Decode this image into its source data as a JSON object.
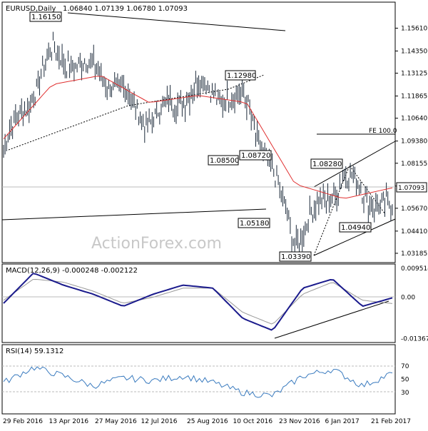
{
  "chart_data": [
    {
      "type": "line",
      "panel": "price",
      "title": "EURUSD,Daily",
      "ohlc_header": "1.06840 1.07139 1.06780 1.07093",
      "last_price_label": "1.07093",
      "y_ticks": [
        "1.15610",
        "1.14350",
        "1.13125",
        "1.11865",
        "1.10640",
        "1.09380",
        "1.08155",
        "1.06895",
        "1.05670",
        "1.04410",
        "1.03185"
      ],
      "ylim": [
        1.0275,
        1.1685
      ],
      "grid": false,
      "series": [
        {
          "name": "Price",
          "color": "#1c2a3a",
          "x": [
            "29 Feb 2016",
            "13 Apr 2016",
            "27 May 2016",
            "12 Jul 2016",
            "25 Aug 2016",
            "10 Oct 2016",
            "23 Nov 2016",
            "6 Jan 2017",
            "21 Feb 2017"
          ],
          "values": [
            1.09,
            1.142,
            1.132,
            1.105,
            1.124,
            1.115,
            1.04,
            1.074,
            1.054
          ]
        },
        {
          "color": "#e03030",
          "x": [
            "29 Feb 2016",
            "13 Apr 2016",
            "27 May 2016",
            "12 Jul 2016",
            "25 Aug 2016",
            "10 Oct 2016",
            "23 Nov 2016",
            "6 Jan 2017",
            "21 Feb 2017"
          ],
          "values": [
            1.095,
            1.125,
            1.13,
            1.115,
            1.119,
            1.115,
            1.07,
            1.062,
            1.068
          ]
        }
      ],
      "annotations": [
        {
          "text": "1.16150",
          "x": "10 Apr 2016"
        },
        {
          "text": "1.12980",
          "x": "20 Sep 2016"
        },
        {
          "text": "1.08500",
          "x": "26 Sep 2016"
        },
        {
          "text": "1.08720",
          "x": "10 Oct 2016"
        },
        {
          "text": "1.05180",
          "x": "20 Oct 2016"
        },
        {
          "text": "1.03390",
          "x": "3 Nov 2016"
        },
        {
          "text": "1.08280",
          "x": "2 Jan 2017"
        },
        {
          "text": "1.04940",
          "x": "20 Jan 2017"
        },
        {
          "text": "FE 100.0"
        }
      ],
      "watermark": "ActionForex.com"
    },
    {
      "type": "line",
      "panel": "macd",
      "title": "MACD(12,26,9) -0.000248 -0.002122",
      "y_ticks": [
        "0.009514",
        "0.00",
        "-0.013671"
      ],
      "ylim": [
        -0.0145,
        0.0105
      ],
      "series": [
        {
          "name": "MACD",
          "color": "#1a1a8c",
          "values": [
            -0.002,
            0.008,
            0.004,
            0.001,
            -0.003,
            0.001,
            0.004,
            0.003,
            -0.007,
            -0.011,
            0.003,
            0.006,
            -0.003,
            -0.0002
          ]
        },
        {
          "name": "Signal",
          "color": "#999999",
          "values": [
            -0.001,
            0.006,
            0.005,
            0.002,
            -0.002,
            0.0,
            0.003,
            0.003,
            -0.005,
            -0.009,
            0.001,
            0.005,
            -0.001,
            -0.0021
          ]
        }
      ]
    },
    {
      "type": "line",
      "panel": "rsi",
      "title": "RSI(14) 59.1312",
      "y_ticks": [
        "70",
        "50",
        "30"
      ],
      "ylim": [
        0,
        100
      ],
      "series": [
        {
          "name": "RSI",
          "color": "#3a7bbf",
          "values": [
            45,
            68,
            55,
            40,
            52,
            48,
            55,
            45,
            30,
            25,
            55,
            65,
            40,
            59
          ]
        }
      ]
    }
  ],
  "x_ticks": [
    "29 Feb 2016",
    "13 Apr 2016",
    "27 May 2016",
    "12 Jul 2016",
    "25 Aug 2016",
    "10 Oct 2016",
    "23 Nov 2016",
    "6 Jan 2017",
    "21 Feb 2017"
  ]
}
